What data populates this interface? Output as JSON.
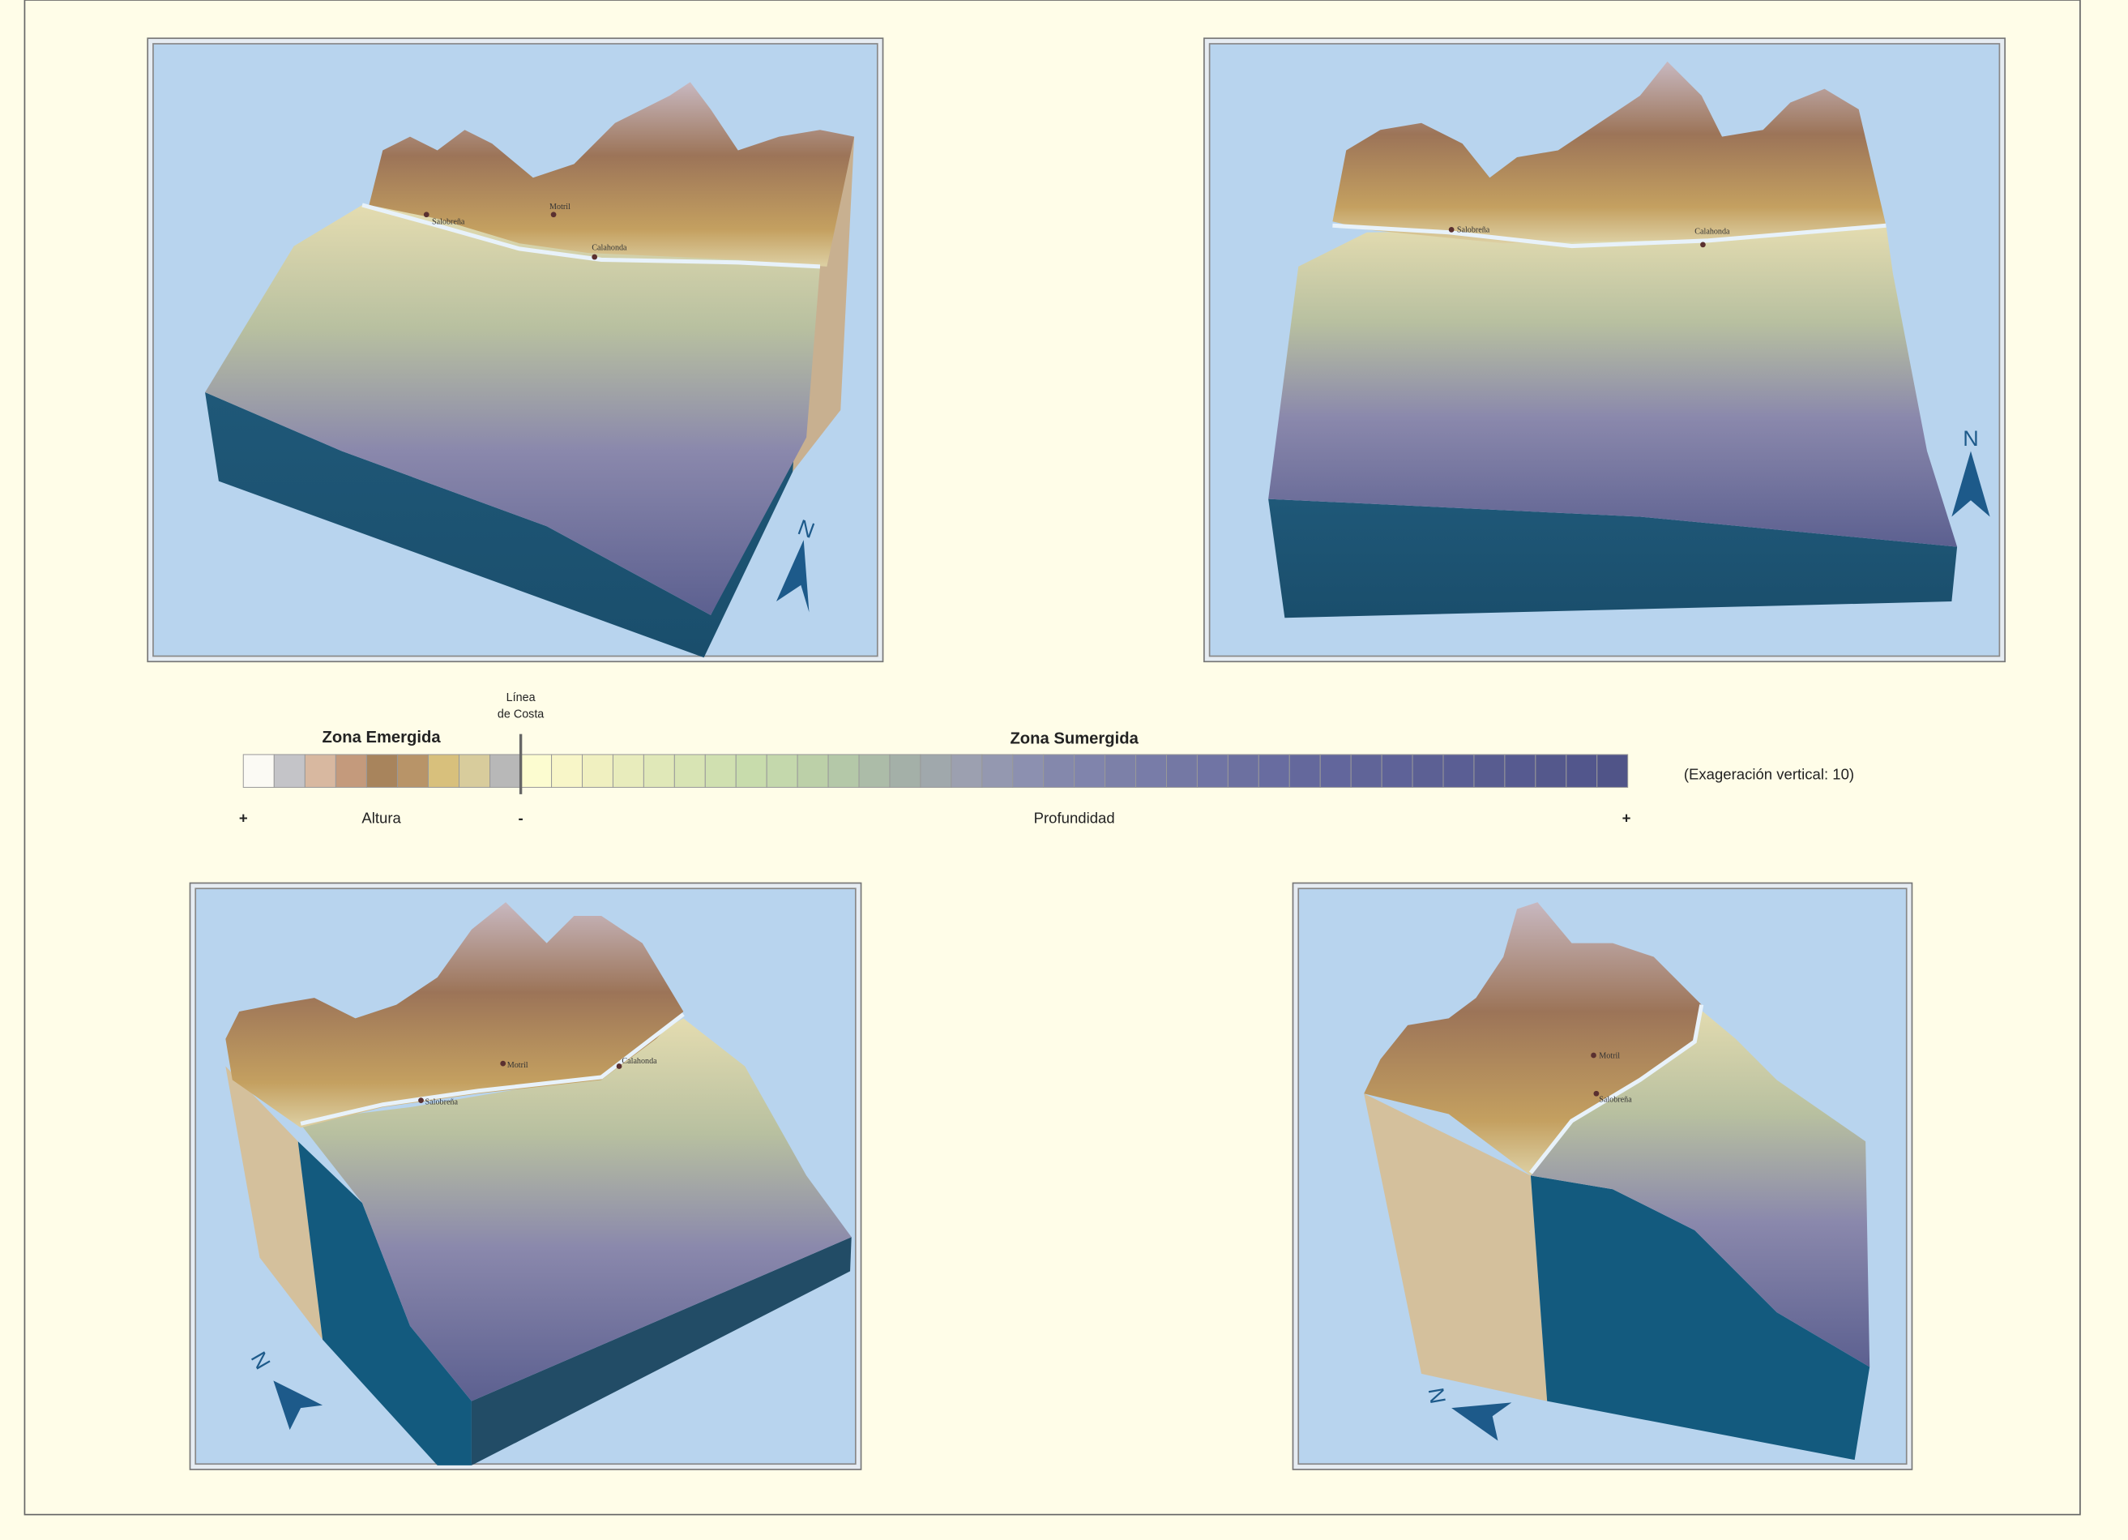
{
  "legend": {
    "coast_line_label": [
      "Línea",
      "de Costa"
    ],
    "emerged_label": "Zona Emergida",
    "submerged_label": "Zona Sumergida",
    "scale_note": "(Exageración vertical: 10)",
    "left_plus": "+",
    "height_label": "Altura",
    "minus": "-",
    "depth_label": "Profundidad",
    "right_plus": "+",
    "emerged_colors": [
      "#fbfaf4",
      "#c4c4c8",
      "#d8b8a0",
      "#c49a7c",
      "#a8845c",
      "#b89468",
      "#d8c07c",
      "#d8cc9c",
      "#b8b8b8"
    ],
    "submerged_colors": [
      "#fcfcd0",
      "#f8f6c8",
      "#f0f0c0",
      "#e8ecbc",
      "#e0e8b8",
      "#d8e4b4",
      "#d0e0b0",
      "#c8dcac",
      "#c4d8ac",
      "#bcd0a8",
      "#b4c8a8",
      "#acbca8",
      "#a4b0a8",
      "#a0a8ac",
      "#9ca0b0",
      "#9498b0",
      "#8c90b0",
      "#8488ac",
      "#8084ac",
      "#7c80a8",
      "#787ca8",
      "#7478a4",
      "#7074a4",
      "#6c70a0",
      "#686ca0",
      "#64689c",
      "#62669c",
      "#606498",
      "#5e6298",
      "#5c6094",
      "#5a5e94",
      "#585c90",
      "#565a90",
      "#54588c",
      "#52568c",
      "#505488"
    ]
  },
  "panels": [
    {
      "places": [
        "Salobreña",
        "Motril",
        "Calahonda"
      ],
      "north": "N"
    },
    {
      "places": [
        "Salobreña",
        "Calahonda"
      ],
      "north": "N"
    },
    {
      "places": [
        "Salobreña",
        "Motril",
        "Calahonda"
      ],
      "north": "N"
    },
    {
      "places": [
        "Motril",
        "Salobreña"
      ],
      "north": "N"
    }
  ]
}
